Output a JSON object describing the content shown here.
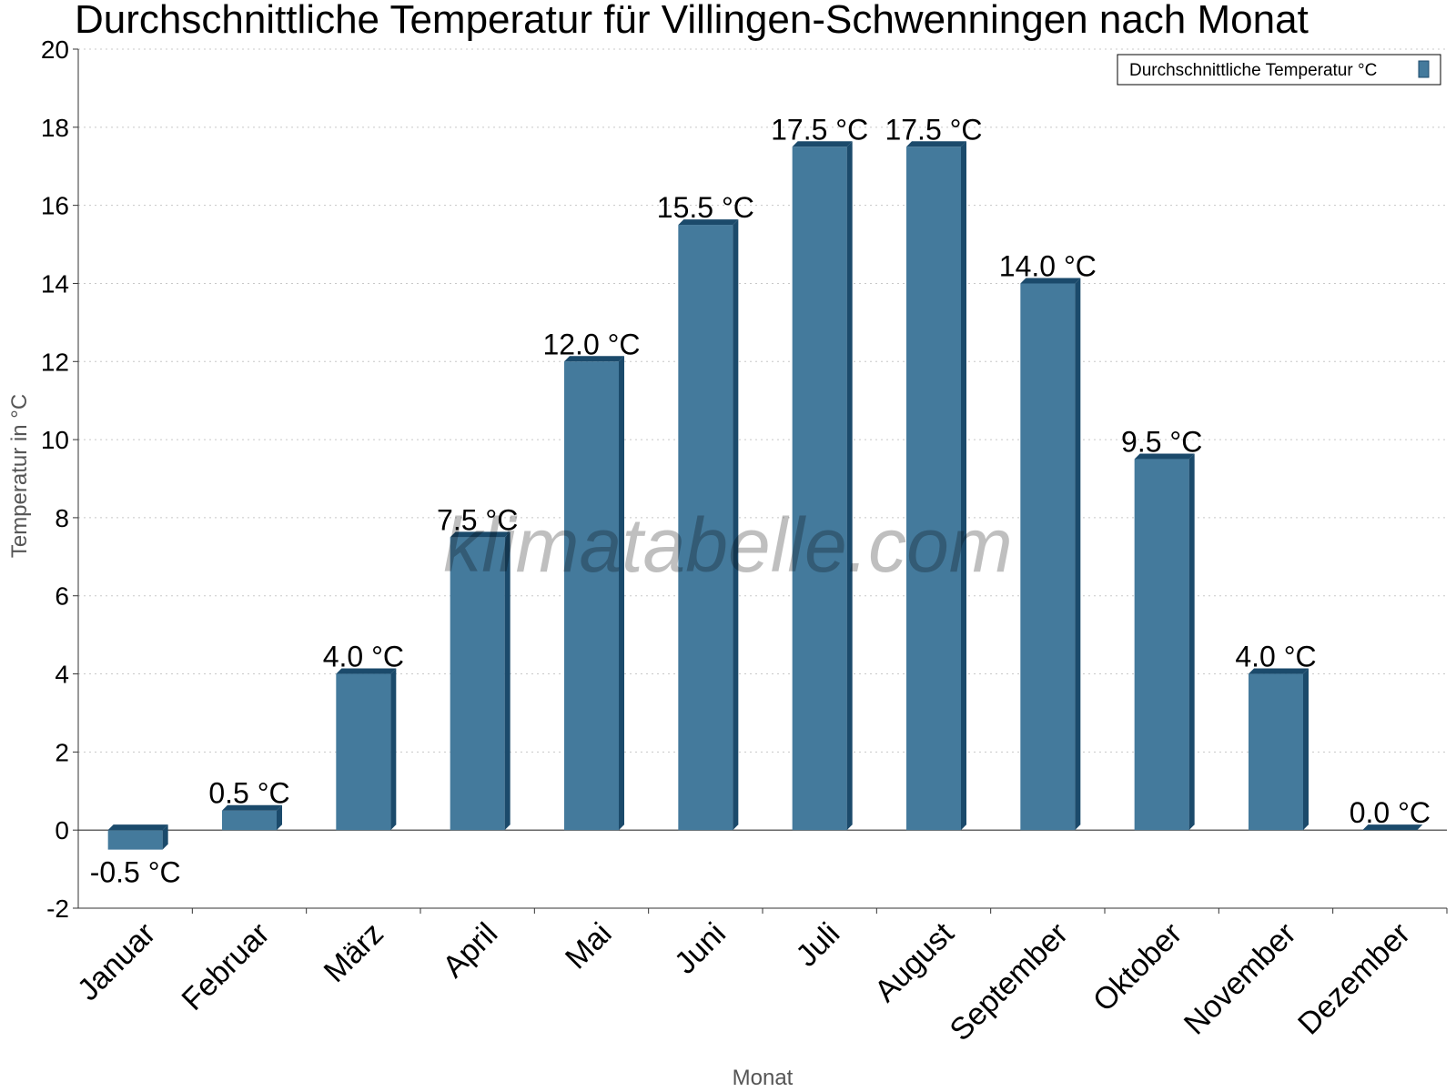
{
  "watermark": "klimatabelle.com",
  "chart_data": {
    "type": "bar",
    "title": "Durchschnittliche Temperatur für Villingen-Schwenningen nach Monat",
    "xlabel": "Monat",
    "ylabel": "Temperatur in °C",
    "ylim": [
      -2,
      20
    ],
    "yticks": [
      -2,
      0,
      2,
      4,
      6,
      8,
      10,
      12,
      14,
      16,
      18,
      20
    ],
    "grid": true,
    "legend_position": "top-right",
    "unit": "°C",
    "categories": [
      "Januar",
      "Februar",
      "März",
      "April",
      "Mai",
      "Juni",
      "Juli",
      "August",
      "September",
      "Oktober",
      "November",
      "Dezember"
    ],
    "series": [
      {
        "name": "Durchschnittliche Temperatur °C",
        "color": "#447a9c",
        "edge_color": "#1b4a6b",
        "values": [
          -0.5,
          0.5,
          4.0,
          7.5,
          12.0,
          15.5,
          17.5,
          17.5,
          14.0,
          9.5,
          4.0,
          0.0
        ]
      }
    ]
  }
}
